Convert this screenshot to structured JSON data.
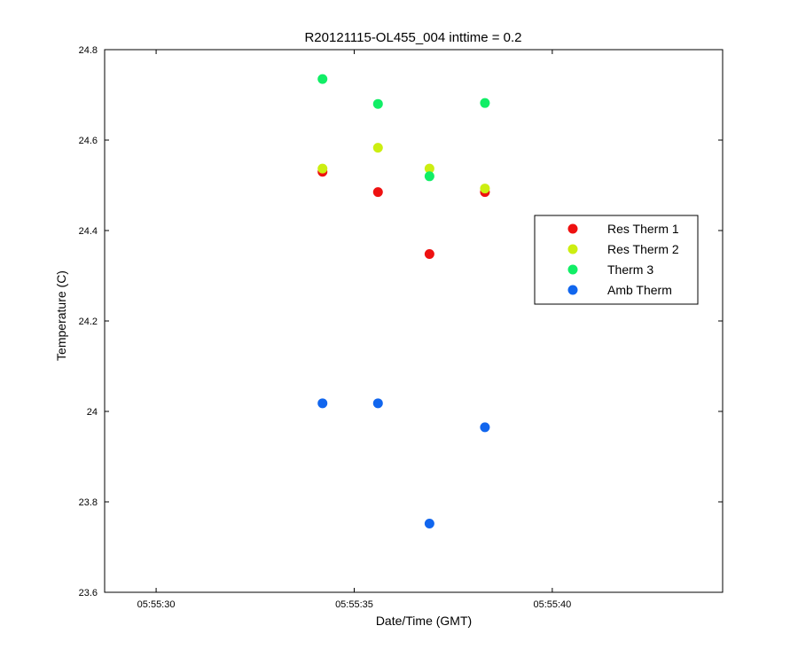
{
  "chart_data": {
    "type": "scatter",
    "title": "R20121115-OL455_004 inttime = 0.2",
    "xlabel": "Date/Time (GMT)",
    "ylabel": "Temperature (C)",
    "xlim": [
      "05:55:28.7",
      "05:55:44.3"
    ],
    "ylim": [
      23.6,
      24.8
    ],
    "x_ticks": [
      "05:55:30",
      "05:55:35",
      "05:55:40"
    ],
    "y_ticks": [
      "23.6",
      "23.8",
      "24",
      "24.2",
      "24.4",
      "24.6",
      "24.8"
    ],
    "legend_position": "right",
    "series": [
      {
        "name": "Res Therm 1",
        "color": "#ee1111",
        "points": [
          {
            "x": "05:55:34.2",
            "y": 24.53
          },
          {
            "x": "05:55:35.6",
            "y": 24.485
          },
          {
            "x": "05:55:36.9",
            "y": 24.348
          },
          {
            "x": "05:55:38.3",
            "y": 24.485
          }
        ]
      },
      {
        "name": "Res Therm 2",
        "color": "#ccee11",
        "points": [
          {
            "x": "05:55:34.2",
            "y": 24.537
          },
          {
            "x": "05:55:35.6",
            "y": 24.583
          },
          {
            "x": "05:55:36.9",
            "y": 24.537
          },
          {
            "x": "05:55:38.3",
            "y": 24.493
          }
        ]
      },
      {
        "name": "Therm 3",
        "color": "#11ee66",
        "points": [
          {
            "x": "05:55:34.2",
            "y": 24.735
          },
          {
            "x": "05:55:35.6",
            "y": 24.68
          },
          {
            "x": "05:55:36.9",
            "y": 24.52
          },
          {
            "x": "05:55:38.3",
            "y": 24.682
          }
        ]
      },
      {
        "name": "Amb Therm",
        "color": "#1166ee",
        "points": [
          {
            "x": "05:55:34.2",
            "y": 24.018
          },
          {
            "x": "05:55:35.6",
            "y": 24.018
          },
          {
            "x": "05:55:36.9",
            "y": 23.752
          },
          {
            "x": "05:55:38.3",
            "y": 23.965
          }
        ]
      }
    ]
  }
}
